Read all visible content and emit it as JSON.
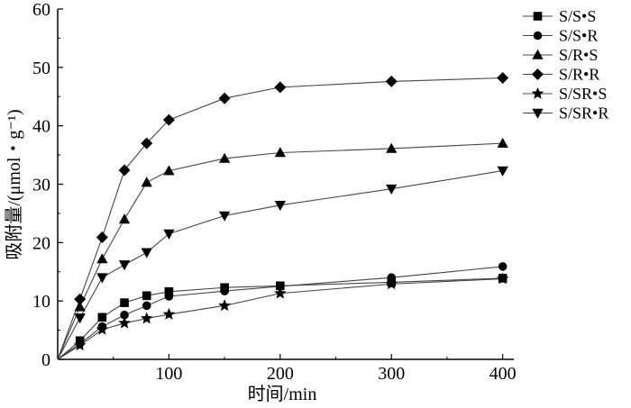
{
  "chart_data": {
    "type": "line",
    "xlabel": "时间/min",
    "ylabel": "吸附量/(μmol・g⁻¹)",
    "xlim": [
      0,
      410
    ],
    "ylim": [
      0,
      60
    ],
    "xticks": [
      100,
      200,
      300,
      400
    ],
    "yticks": [
      0,
      10,
      20,
      30,
      40,
      50,
      60
    ],
    "grid": false,
    "legend_position": "top-right",
    "series": [
      {
        "name": "S/S•S",
        "marker": "square",
        "color": "#000000",
        "x": [
          0,
          20,
          40,
          60,
          80,
          100,
          150,
          200,
          300,
          400
        ],
        "y": [
          0,
          3.2,
          7.2,
          9.7,
          10.9,
          11.6,
          12.3,
          12.6,
          13.2,
          13.9
        ]
      },
      {
        "name": "S/S•R",
        "marker": "circle",
        "color": "#000000",
        "x": [
          0,
          20,
          40,
          60,
          80,
          100,
          150,
          200,
          300,
          400
        ],
        "y": [
          0,
          2.7,
          5.6,
          7.6,
          9.2,
          10.8,
          11.7,
          12.5,
          14.0,
          15.9
        ]
      },
      {
        "name": "S/R•S",
        "marker": "triangle-up",
        "color": "#000000",
        "x": [
          0,
          20,
          40,
          60,
          80,
          100,
          150,
          200,
          300,
          400
        ],
        "y": [
          0,
          9.0,
          17.2,
          24.0,
          30.3,
          32.3,
          34.4,
          35.4,
          36.1,
          37.0
        ]
      },
      {
        "name": "S/R•R",
        "marker": "diamond",
        "color": "#000000",
        "x": [
          0,
          20,
          40,
          60,
          80,
          100,
          150,
          200,
          300,
          400
        ],
        "y": [
          0,
          10.3,
          20.9,
          32.4,
          37.0,
          41.0,
          44.7,
          46.6,
          47.6,
          48.2
        ]
      },
      {
        "name": "S/SR•S",
        "marker": "star",
        "color": "#000000",
        "x": [
          0,
          20,
          40,
          60,
          80,
          100,
          150,
          200,
          300,
          400
        ],
        "y": [
          0,
          2.4,
          5.1,
          6.2,
          7.0,
          7.7,
          9.2,
          11.3,
          12.9,
          13.8
        ]
      },
      {
        "name": "S/SR•R",
        "marker": "triangle-down",
        "color": "#000000",
        "x": [
          0,
          20,
          40,
          60,
          80,
          100,
          150,
          200,
          300,
          400
        ],
        "y": [
          0,
          7.1,
          14.0,
          16.2,
          18.3,
          21.5,
          24.6,
          26.4,
          29.2,
          32.3
        ]
      }
    ]
  }
}
